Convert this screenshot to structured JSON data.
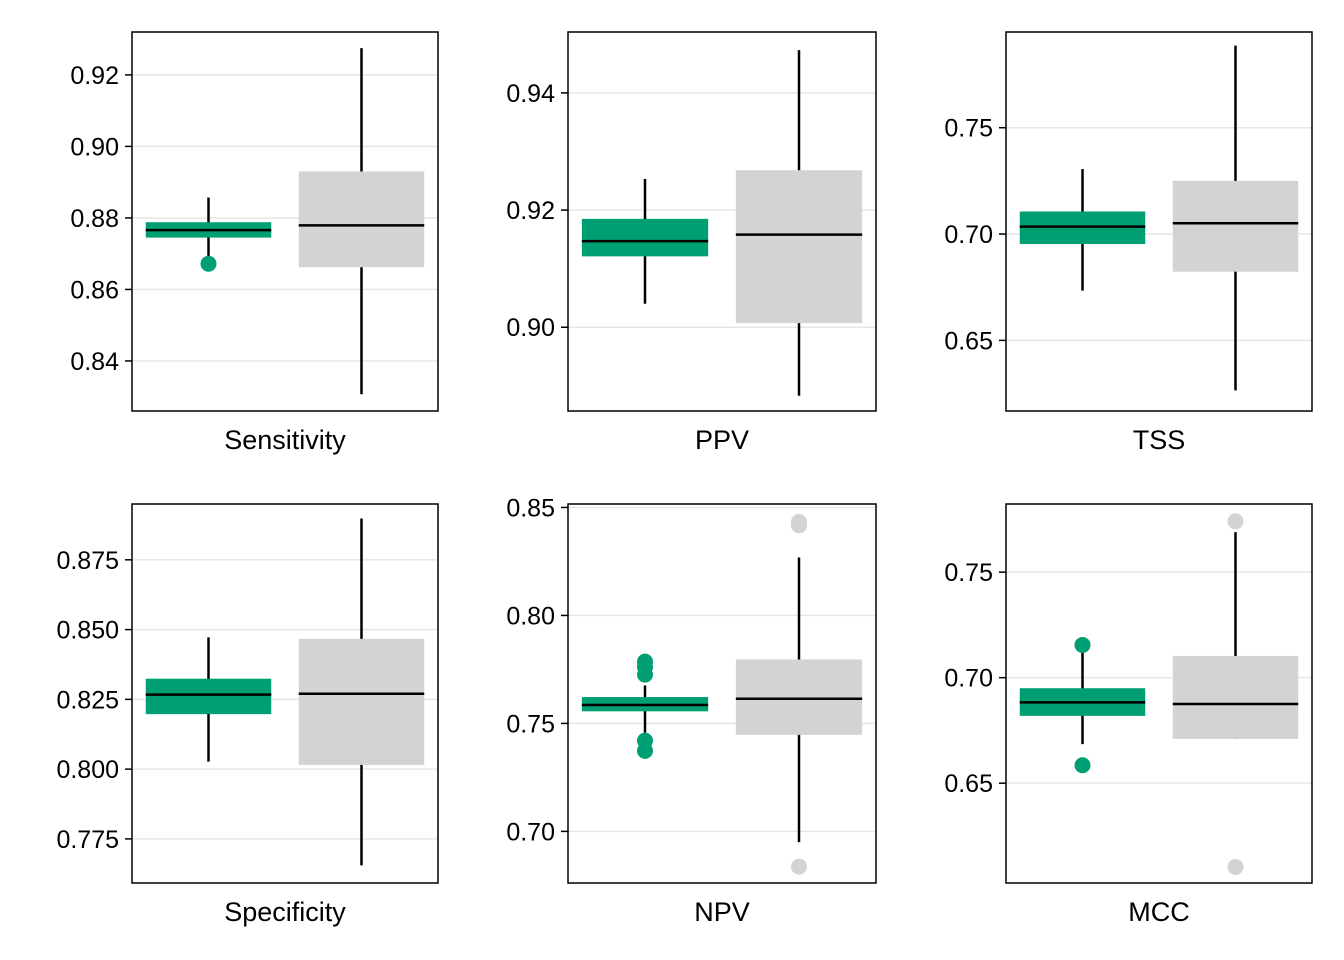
{
  "chart_data": [
    {
      "type": "boxplot",
      "xlabel": "Sensitivity",
      "ylim": [
        0.826,
        0.932
      ],
      "yticks": [
        0.84,
        0.86,
        0.88,
        0.9,
        0.92
      ],
      "ytick_labels": [
        "0.84",
        "0.86",
        "0.88",
        "0.90",
        "0.92"
      ],
      "grid": true,
      "boxes": [
        {
          "color": "#009E73",
          "whisker_low": 0.8688,
          "q1": 0.8745,
          "median": 0.8766,
          "q3": 0.8788,
          "whisker_high": 0.8857,
          "outliers": [
            0.8672
          ]
        },
        {
          "color": "#D3D3D3",
          "whisker_low": 0.8307,
          "q1": 0.8662,
          "median": 0.8779,
          "q3": 0.893,
          "whisker_high": 0.9275,
          "outliers": []
        }
      ]
    },
    {
      "type": "boxplot",
      "xlabel": "PPV",
      "ylim": [
        0.8857,
        0.9504
      ],
      "yticks": [
        0.9,
        0.92,
        0.94
      ],
      "ytick_labels": [
        "0.90",
        "0.92",
        "0.94"
      ],
      "grid": true,
      "boxes": [
        {
          "color": "#009E73",
          "whisker_low": 0.904,
          "q1": 0.9121,
          "median": 0.9147,
          "q3": 0.9185,
          "whisker_high": 0.9253,
          "outliers": []
        },
        {
          "color": "#D3D3D3",
          "whisker_low": 0.8883,
          "q1": 0.9007,
          "median": 0.9158,
          "q3": 0.9268,
          "whisker_high": 0.9473,
          "outliers": []
        }
      ]
    },
    {
      "type": "boxplot",
      "xlabel": "TSS",
      "ylim": [
        0.6168,
        0.795
      ],
      "yticks": [
        0.65,
        0.7,
        0.75
      ],
      "ytick_labels": [
        "0.65",
        "0.70",
        "0.75"
      ],
      "grid": true,
      "boxes": [
        {
          "color": "#009E73",
          "whisker_low": 0.6734,
          "q1": 0.6953,
          "median": 0.7035,
          "q3": 0.7106,
          "whisker_high": 0.7306,
          "outliers": []
        },
        {
          "color": "#D3D3D3",
          "whisker_low": 0.6265,
          "q1": 0.6823,
          "median": 0.7051,
          "q3": 0.725,
          "whisker_high": 0.7886,
          "outliers": []
        }
      ]
    },
    {
      "type": "boxplot",
      "xlabel": "Specificity",
      "ylim": [
        0.7592,
        0.895
      ],
      "yticks": [
        0.775,
        0.8,
        0.825,
        0.85,
        0.875
      ],
      "ytick_labels": [
        "0.775",
        "0.800",
        "0.825",
        "0.850",
        "0.875"
      ],
      "grid": true,
      "boxes": [
        {
          "color": "#009E73",
          "whisker_low": 0.8027,
          "q1": 0.8197,
          "median": 0.8267,
          "q3": 0.8324,
          "whisker_high": 0.8472,
          "outliers": []
        },
        {
          "color": "#D3D3D3",
          "whisker_low": 0.7655,
          "q1": 0.8015,
          "median": 0.827,
          "q3": 0.8467,
          "whisker_high": 0.8898,
          "outliers": []
        }
      ]
    },
    {
      "type": "boxplot",
      "xlabel": "NPV",
      "ylim": [
        0.6761,
        0.8516
      ],
      "yticks": [
        0.7,
        0.75,
        0.8,
        0.85
      ],
      "ytick_labels": [
        "0.70",
        "0.75",
        "0.80",
        "0.85"
      ],
      "grid": true,
      "boxes": [
        {
          "color": "#009E73",
          "whisker_low": 0.7457,
          "q1": 0.7556,
          "median": 0.7585,
          "q3": 0.7622,
          "whisker_high": 0.7676,
          "outliers": [
            0.7373,
            0.742,
            0.7726,
            0.7762,
            0.7786
          ]
        },
        {
          "color": "#D3D3D3",
          "whisker_low": 0.695,
          "q1": 0.7447,
          "median": 0.7614,
          "q3": 0.7796,
          "whisker_high": 0.8268,
          "outliers": [
            0.6837,
            0.8417,
            0.8433
          ]
        }
      ]
    },
    {
      "type": "boxplot",
      "xlabel": "MCC",
      "ylim": [
        0.6027,
        0.7823
      ],
      "yticks": [
        0.65,
        0.7,
        0.75
      ],
      "ytick_labels": [
        "0.65",
        "0.70",
        "0.75"
      ],
      "grid": true,
      "boxes": [
        {
          "color": "#009E73",
          "whisker_low": 0.6685,
          "q1": 0.6819,
          "median": 0.6883,
          "q3": 0.695,
          "whisker_high": 0.7137,
          "outliers": [
            0.6585,
            0.7155
          ]
        },
        {
          "color": "#D3D3D3",
          "whisker_low": 0.671,
          "q1": 0.671,
          "median": 0.6875,
          "q3": 0.7103,
          "whisker_high": 0.769,
          "outliers": [
            0.6103,
            0.7741
          ]
        }
      ]
    }
  ]
}
